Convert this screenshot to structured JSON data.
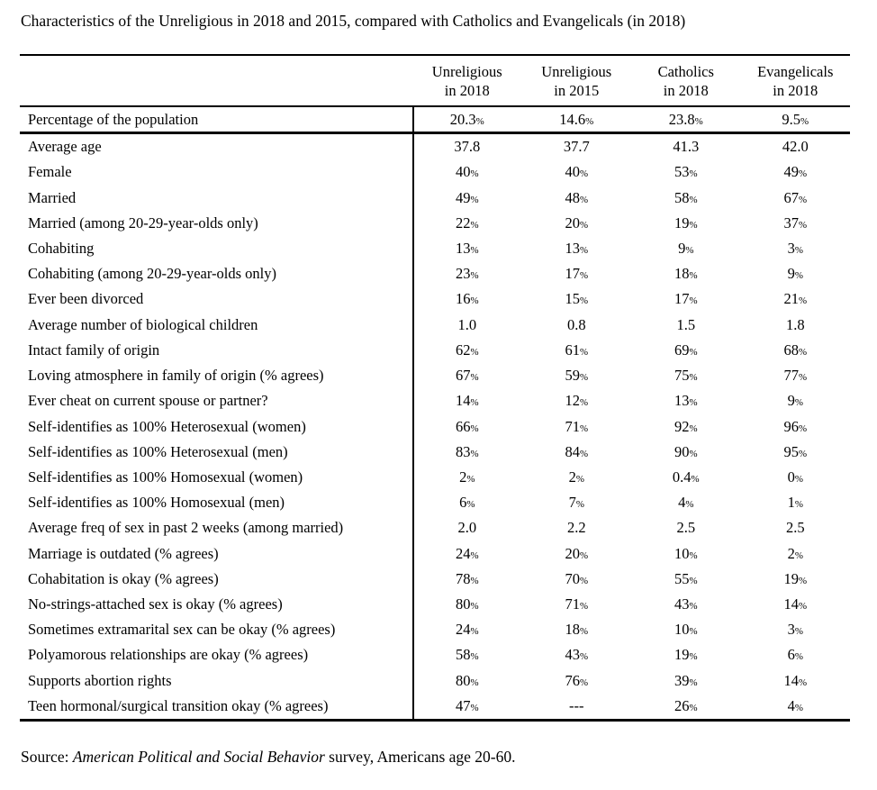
{
  "title": "Characteristics of the Unreligious in 2018 and 2015, compared with Catholics and Evangelicals (in 2018)",
  "colors": {
    "text": "#000000",
    "background": "#ffffff",
    "rule": "#000000"
  },
  "table": {
    "columns": [
      {
        "line1": "Unreligious",
        "line2": "in 2018"
      },
      {
        "line1": "Unreligious",
        "line2": "in 2015"
      },
      {
        "line1": "Catholics",
        "line2": "in 2018"
      },
      {
        "line1": "Evangelicals",
        "line2": "in 2018"
      }
    ],
    "percentage_row": {
      "label": "Percentage of the population",
      "values": [
        "20.3%",
        "14.6%",
        "23.8%",
        "9.5%"
      ]
    },
    "rows": [
      {
        "label": "Average age",
        "values": [
          "37.8",
          "37.7",
          "41.3",
          "42.0"
        ]
      },
      {
        "label": "Female",
        "values": [
          "40%",
          "40%",
          "53%",
          "49%"
        ]
      },
      {
        "label": "Married",
        "values": [
          "49%",
          "48%",
          "58%",
          "67%"
        ]
      },
      {
        "label": "Married (among 20-29-year-olds only)",
        "values": [
          "22%",
          "20%",
          "19%",
          "37%"
        ]
      },
      {
        "label": "Cohabiting",
        "values": [
          "13%",
          "13%",
          "9%",
          "3%"
        ]
      },
      {
        "label": "Cohabiting (among 20-29-year-olds only)",
        "values": [
          "23%",
          "17%",
          "18%",
          "9%"
        ]
      },
      {
        "label": "Ever been divorced",
        "values": [
          "16%",
          "15%",
          "17%",
          "21%"
        ]
      },
      {
        "label": "Average number of biological children",
        "values": [
          "1.0",
          "0.8",
          "1.5",
          "1.8"
        ]
      },
      {
        "label": "Intact family of origin",
        "values": [
          "62%",
          "61%",
          "69%",
          "68%"
        ]
      },
      {
        "label": "Loving atmosphere in family of origin (% agrees)",
        "values": [
          "67%",
          "59%",
          "75%",
          "77%"
        ]
      },
      {
        "label": "Ever cheat on current spouse or partner?",
        "values": [
          "14%",
          "12%",
          "13%",
          "9%"
        ]
      },
      {
        "label": "Self-identifies as 100% Heterosexual (women)",
        "values": [
          "66%",
          "71%",
          "92%",
          "96%"
        ]
      },
      {
        "label": "Self-identifies as 100% Heterosexual (men)",
        "values": [
          "83%",
          "84%",
          "90%",
          "95%"
        ]
      },
      {
        "label": "Self-identifies as 100% Homosexual (women)",
        "values": [
          "2%",
          "2%",
          "0.4%",
          "0%"
        ]
      },
      {
        "label": "Self-identifies as 100% Homosexual (men)",
        "values": [
          "6%",
          "7%",
          "4%",
          "1%"
        ]
      },
      {
        "label": "Average freq of sex in past 2 weeks (among married)",
        "values": [
          "2.0",
          "2.2",
          "2.5",
          "2.5"
        ]
      },
      {
        "label": "Marriage is outdated (% agrees)",
        "values": [
          "24%",
          "20%",
          "10%",
          "2%"
        ]
      },
      {
        "label": "Cohabitation is okay (% agrees)",
        "values": [
          "78%",
          "70%",
          "55%",
          "19%"
        ]
      },
      {
        "label": "No-strings-attached sex is okay (% agrees)",
        "values": [
          "80%",
          "71%",
          "43%",
          "14%"
        ]
      },
      {
        "label": "Sometimes extramarital sex can be okay (% agrees)",
        "values": [
          "24%",
          "18%",
          "10%",
          "3%"
        ]
      },
      {
        "label": "Polyamorous relationships are okay (% agrees)",
        "values": [
          "58%",
          "43%",
          "19%",
          "6%"
        ]
      },
      {
        "label": "Supports abortion rights",
        "values": [
          "80%",
          "76%",
          "39%",
          "14%"
        ]
      },
      {
        "label": "Teen hormonal/surgical transition okay (% agrees)",
        "values": [
          "47%",
          "---",
          "26%",
          "4%"
        ]
      }
    ]
  },
  "source": {
    "prefix": "Source: ",
    "italic": "American Political and Social Behavior",
    "suffix": " survey, Americans age 20-60."
  }
}
